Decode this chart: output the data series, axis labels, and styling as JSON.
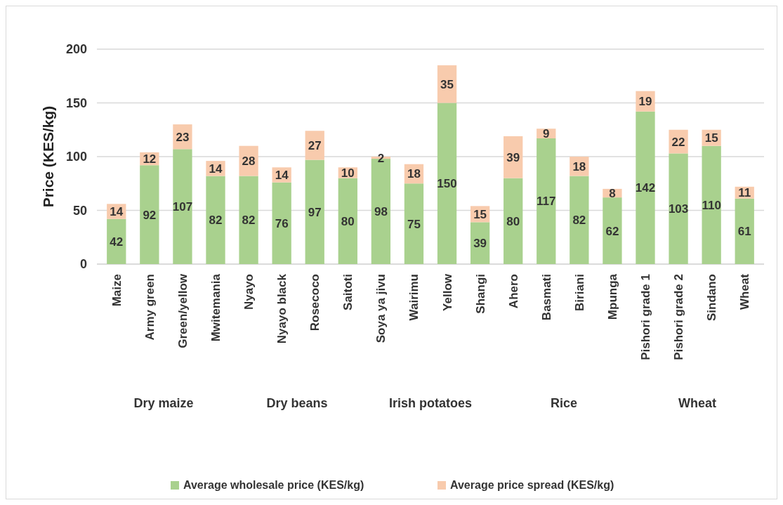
{
  "chart_data": {
    "type": "bar",
    "stacked": true,
    "ylabel": "Price (KES/kg)",
    "categories": [
      "Maize",
      "Army green",
      "Green/yellow",
      "Mwitemania",
      "Nyayo",
      "Nyayo black",
      "Rosecoco",
      "Saitoti",
      "Soya ya jivu",
      "Wairimu",
      "Yellow",
      "Shangi",
      "Ahero",
      "Basmati",
      "Biriani",
      "Mpunga",
      "Pishori grade 1",
      "Pishori grade 2",
      "Sindano",
      "Wheat"
    ],
    "series": [
      {
        "name": "Average wholesale price (KES/kg)",
        "color": "#a9d18e",
        "values": [
          42,
          92,
          107,
          82,
          82,
          76,
          97,
          80,
          98,
          75,
          150,
          39,
          80,
          117,
          82,
          62,
          142,
          103,
          110,
          61
        ]
      },
      {
        "name": "Average price spread (KES/kg)",
        "color": "#f8cbad",
        "values": [
          14,
          12,
          23,
          14,
          28,
          14,
          27,
          10,
          2,
          18,
          35,
          15,
          39,
          9,
          18,
          8,
          19,
          22,
          15,
          11
        ]
      }
    ],
    "data_labels": true,
    "ylim": [
      0,
      200
    ],
    "yticks": [
      0,
      50,
      100,
      150,
      200
    ],
    "grid": "y",
    "legend": "bottom",
    "annotations": [
      "Dry maize",
      "Dry beans",
      "Irish potatoes",
      "Rice",
      "Wheat"
    ]
  }
}
